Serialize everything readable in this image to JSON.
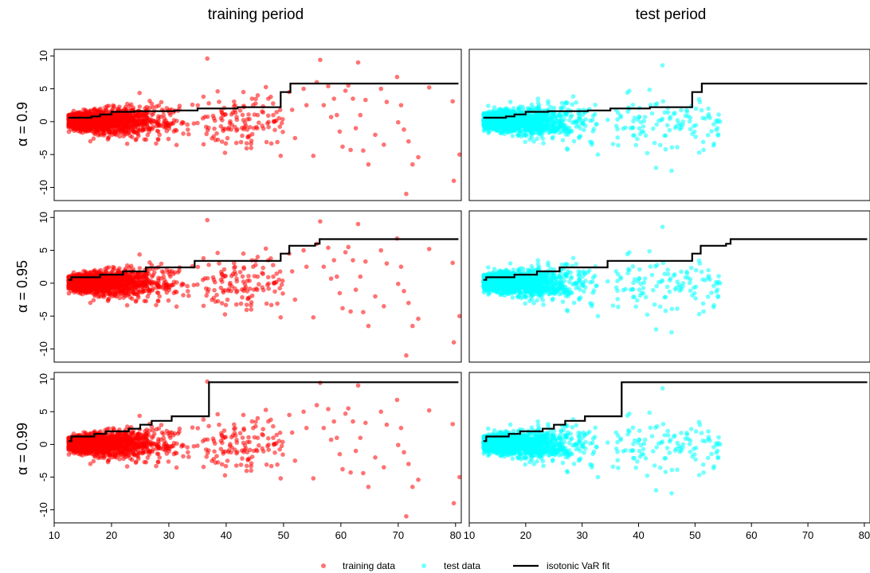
{
  "column_titles": [
    "training period",
    "test period"
  ],
  "row_labels": [
    "α = 0.9",
    "α = 0.95",
    "α = 0.99"
  ],
  "legend": {
    "training": "training data",
    "test": "test data",
    "fit": "isotonic VaR fit"
  },
  "colors": {
    "training": "#ff0000",
    "test": "#00ffff",
    "fit": "#000000"
  },
  "chart_data": {
    "type": "scatter",
    "layout": "3 rows x 2 columns of panels",
    "xlim": [
      10,
      81
    ],
    "ylim": [
      -12,
      11
    ],
    "xticks": [
      10,
      20,
      30,
      40,
      50,
      60,
      70,
      80
    ],
    "yticks": [
      -10,
      -5,
      0,
      5,
      10
    ],
    "grid": false,
    "legend_position": "bottom",
    "scatter_note": "dense cloud of ~1500 points per panel, x roughly 12-36 dense, sparse beyond; test data ends near x=55",
    "steps": {
      "alpha_0.9": [
        [
          12.5,
          0.6
        ],
        [
          16.5,
          0.8
        ],
        [
          18,
          1.1
        ],
        [
          20,
          1.5
        ],
        [
          24,
          1.6
        ],
        [
          31,
          1.7
        ],
        [
          35,
          2.0
        ],
        [
          42,
          2.2
        ],
        [
          49.5,
          4.5
        ],
        [
          51.2,
          5.8
        ],
        [
          80.5,
          5.8
        ]
      ],
      "alpha_0.95": [
        [
          12.5,
          0.5
        ],
        [
          13,
          0.9
        ],
        [
          18,
          1.3
        ],
        [
          22,
          1.8
        ],
        [
          26,
          2.4
        ],
        [
          34.5,
          3.4
        ],
        [
          49.5,
          4.5
        ],
        [
          51,
          5.7
        ],
        [
          55.5,
          6.0
        ],
        [
          56.3,
          6.7
        ],
        [
          80.5,
          6.7
        ]
      ],
      "alpha_0.99": [
        [
          12.5,
          0.5
        ],
        [
          13,
          1.2
        ],
        [
          17,
          1.6
        ],
        [
          19,
          2.0
        ],
        [
          23,
          2.4
        ],
        [
          25,
          3.0
        ],
        [
          27,
          3.6
        ],
        [
          30.5,
          4.3
        ],
        [
          37,
          9.5
        ],
        [
          80.5,
          9.5
        ]
      ]
    },
    "train_outliers": [
      [
        36.7,
        9.6
      ],
      [
        43,
        4.5
      ],
      [
        44.5,
        3.5
      ],
      [
        45.5,
        4
      ],
      [
        49.5,
        -5.2
      ],
      [
        51,
        4.5
      ],
      [
        51.5,
        1.8
      ],
      [
        52,
        -2.5
      ],
      [
        53.5,
        5
      ],
      [
        54,
        2.5
      ],
      [
        55.2,
        -5.2
      ],
      [
        55.8,
        6
      ],
      [
        56.4,
        9.4
      ],
      [
        57,
        2.5
      ],
      [
        57.8,
        5.4
      ],
      [
        58.3,
        0.7
      ],
      [
        58.8,
        3.5
      ],
      [
        59.3,
        1
      ],
      [
        59.8,
        -1.5
      ],
      [
        60.3,
        -3.8
      ],
      [
        60.8,
        4.7
      ],
      [
        61.3,
        5.5
      ],
      [
        61.7,
        -4.3
      ],
      [
        62.1,
        3.5
      ],
      [
        62.6,
        -1
      ],
      [
        63,
        9
      ],
      [
        63.4,
        1
      ],
      [
        63.9,
        -4.4
      ],
      [
        64.3,
        3.3
      ],
      [
        64.8,
        -6.5
      ],
      [
        66,
        -2
      ],
      [
        67,
        5
      ],
      [
        67.5,
        -3.5
      ],
      [
        68,
        3
      ],
      [
        69.8,
        6.8
      ],
      [
        70,
        -0.1
      ],
      [
        70.5,
        2.5
      ],
      [
        71,
        -1.2
      ],
      [
        71.4,
        -11
      ],
      [
        71.8,
        -3
      ],
      [
        72.5,
        -6.5
      ],
      [
        73.5,
        -5.4
      ],
      [
        75.4,
        5.2
      ],
      [
        79.5,
        3.1
      ],
      [
        79.7,
        -9
      ],
      [
        80.7,
        -5
      ]
    ]
  }
}
